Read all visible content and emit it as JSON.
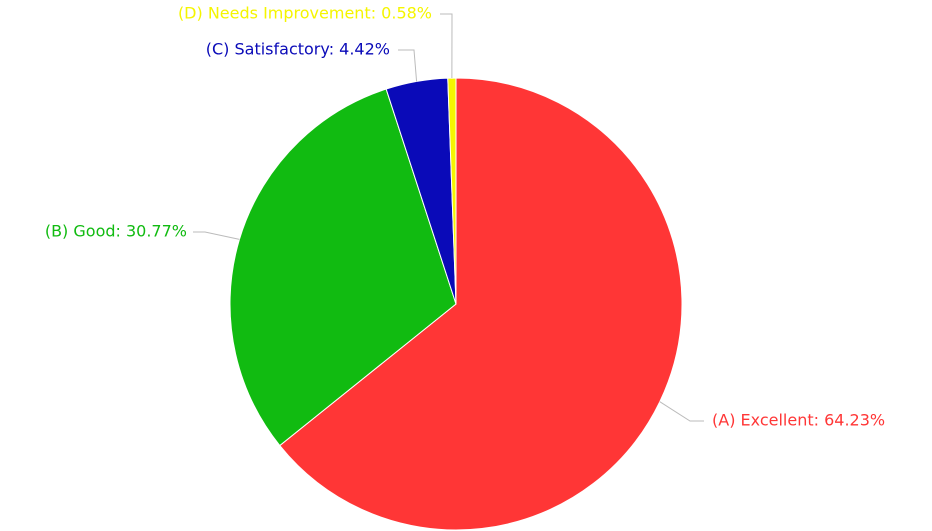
{
  "chart_data": {
    "type": "pie",
    "values": [
      64.23,
      30.77,
      4.42,
      0.58
    ],
    "value_labels": [
      "(A) Excellent: 64.23%",
      "(B) Good: 30.77%",
      "(C) Satisfactory: 4.42%",
      "(D) Needs Improvement: 0.58%"
    ],
    "colors": [
      "#ff3636",
      "#11bb11",
      "#0a0ab8",
      "#f5f500"
    ]
  }
}
